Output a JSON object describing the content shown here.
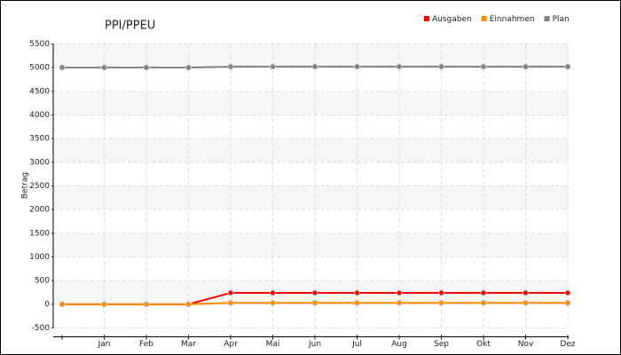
{
  "chart_data": {
    "type": "line",
    "title": "PPI/PPEU",
    "y_label": "Betrag",
    "categories": [
      null,
      "Jan",
      "Feb",
      "Mar",
      "Apr",
      "Mai",
      "Jun",
      "Jul",
      "Aug",
      "Sep",
      "Okt",
      "Nov",
      "Dez"
    ],
    "series": [
      {
        "name": "Ausgaben",
        "color": "#ff0000",
        "values": [
          0,
          0,
          0,
          0,
          240,
          240,
          240,
          240,
          240,
          240,
          240,
          240,
          240
        ]
      },
      {
        "name": "Einnahmen",
        "color": "#ff8c00",
        "values": [
          0,
          0,
          0,
          0,
          30,
          30,
          30,
          30,
          30,
          30,
          30,
          30,
          30
        ]
      },
      {
        "name": "Plan",
        "color": "#808080",
        "values": [
          5000,
          5000,
          5000,
          5000,
          5020,
          5020,
          5020,
          5020,
          5020,
          5020,
          5020,
          5020,
          5020
        ]
      }
    ],
    "ylim": [
      -500,
      5500
    ],
    "yticks": [
      -500,
      0,
      500,
      1000,
      1500,
      2000,
      2500,
      3000,
      3500,
      4000,
      4500,
      5000,
      5500
    ],
    "grid": true,
    "legend": "top-right"
  }
}
